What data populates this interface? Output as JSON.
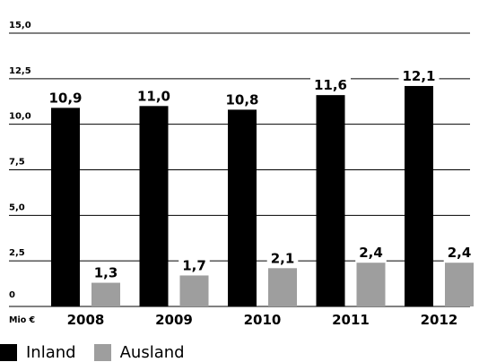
{
  "chart_data": {
    "type": "bar",
    "categories": [
      "2008",
      "2009",
      "2010",
      "2011",
      "2012"
    ],
    "series": [
      {
        "name": "Inland",
        "values": [
          10.9,
          11.0,
          10.8,
          11.6,
          12.1
        ],
        "labels": [
          "10,9",
          "11,0",
          "10,8",
          "11,6",
          "12,1"
        ],
        "color": "#000000"
      },
      {
        "name": "Ausland",
        "values": [
          1.3,
          1.7,
          2.1,
          2.4,
          2.4
        ],
        "labels": [
          "1,3",
          "1,7",
          "2,1",
          "2,4",
          "2,4"
        ],
        "color": "#9e9e9e"
      }
    ],
    "yticks": [
      {
        "value": 0,
        "label": "0"
      },
      {
        "value": 2.5,
        "label": "2,5"
      },
      {
        "value": 5,
        "label": "5,0"
      },
      {
        "value": 7.5,
        "label": "7,5"
      },
      {
        "value": 10,
        "label": "10,0"
      },
      {
        "value": 12.5,
        "label": "12,5"
      },
      {
        "value": 15,
        "label": "15,0"
      }
    ],
    "ylabel": "Mio €",
    "ylim": [
      0,
      15
    ],
    "grid": true,
    "legend_position": "bottom-left",
    "grid_color": "#000000"
  }
}
